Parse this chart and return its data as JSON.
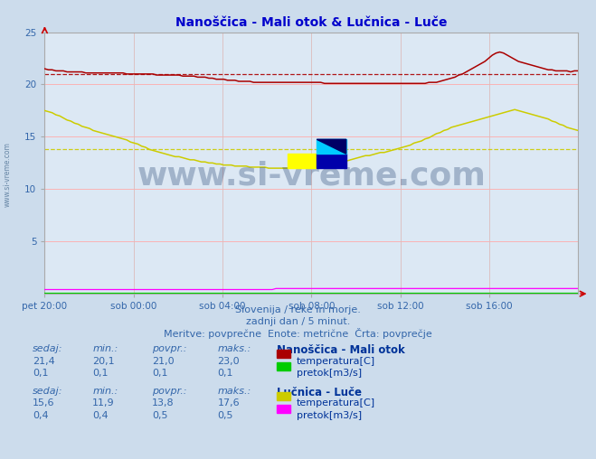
{
  "title": "Nanoščica - Mali otok & Lučnica - Luče",
  "title_color": "#0000cc",
  "bg_color": "#ccdcec",
  "plot_bg_color": "#dce8f4",
  "grid_color_h": "#ffaaaa",
  "grid_color_v": "#ddbbbb",
  "x_labels": [
    "pet 20:00",
    "sob 00:00",
    "sob 04:00",
    "sob 08:00",
    "sob 12:00",
    "sob 16:00"
  ],
  "x_ticks": [
    0,
    24,
    48,
    72,
    96,
    120
  ],
  "x_max": 144,
  "y_min": 0,
  "y_max": 25,
  "y_ticks": [
    5,
    10,
    15,
    20,
    25
  ],
  "arrow_color": "#cc0000",
  "watermark": "www.si-vreme.com",
  "watermark_color": "#1a3a6a",
  "subtitle1": "Slovenija / reke in morje.",
  "subtitle2": "zadnji dan / 5 minut.",
  "subtitle3": "Meritve: povprečne  Enote: metrične  Črta: povprečje",
  "subtitle_color": "#3366aa",
  "legend_header1": "Nanoščica - Mali otok",
  "legend_header2": "Lučnica - Luče",
  "legend_color": "#003399",
  "table_label_color": "#3366aa",
  "nano_temp_color": "#aa0000",
  "nano_flow_color": "#00cc00",
  "luce_temp_color": "#cccc00",
  "luce_flow_color": "#ff00ff",
  "nano_temp_avg": 21.0,
  "luce_temp_avg": 13.8,
  "s1_sedaj": "21,4",
  "s1_min": "20,1",
  "s1_povpr": "21,0",
  "s1_maks": "23,0",
  "s1_flow_sedaj": "0,1",
  "s1_flow_min": "0,1",
  "s1_flow_povpr": "0,1",
  "s1_flow_maks": "0,1",
  "s2_sedaj": "15,6",
  "s2_min": "11,9",
  "s2_povpr": "13,8",
  "s2_maks": "17,6",
  "s2_flow_sedaj": "0,4",
  "s2_flow_min": "0,4",
  "s2_flow_povpr": "0,5",
  "s2_flow_maks": "0,5",
  "nano_temp": [
    21.5,
    21.4,
    21.4,
    21.3,
    21.3,
    21.3,
    21.2,
    21.2,
    21.2,
    21.2,
    21.2,
    21.1,
    21.1,
    21.1,
    21.1,
    21.1,
    21.1,
    21.1,
    21.1,
    21.1,
    21.1,
    21.1,
    21.0,
    21.0,
    21.0,
    21.0,
    21.0,
    21.0,
    21.0,
    21.0,
    20.9,
    20.9,
    20.9,
    20.9,
    20.9,
    20.9,
    20.9,
    20.8,
    20.8,
    20.8,
    20.8,
    20.7,
    20.7,
    20.7,
    20.6,
    20.6,
    20.5,
    20.5,
    20.5,
    20.4,
    20.4,
    20.4,
    20.3,
    20.3,
    20.3,
    20.3,
    20.2,
    20.2,
    20.2,
    20.2,
    20.2,
    20.2,
    20.2,
    20.2,
    20.2,
    20.2,
    20.2,
    20.2,
    20.2,
    20.2,
    20.2,
    20.2,
    20.2,
    20.2,
    20.2,
    20.1,
    20.1,
    20.1,
    20.1,
    20.1,
    20.1,
    20.1,
    20.1,
    20.1,
    20.1,
    20.1,
    20.1,
    20.1,
    20.1,
    20.1,
    20.1,
    20.1,
    20.1,
    20.1,
    20.1,
    20.1,
    20.1,
    20.1,
    20.1,
    20.1,
    20.1,
    20.1,
    20.1,
    20.2,
    20.2,
    20.2,
    20.3,
    20.4,
    20.5,
    20.6,
    20.7,
    20.9,
    21.0,
    21.2,
    21.4,
    21.6,
    21.8,
    22.0,
    22.2,
    22.5,
    22.8,
    23.0,
    23.1,
    23.0,
    22.8,
    22.6,
    22.4,
    22.2,
    22.1,
    22.0,
    21.9,
    21.8,
    21.7,
    21.6,
    21.5,
    21.4,
    21.4,
    21.3,
    21.3,
    21.3,
    21.3,
    21.2,
    21.3,
    21.3
  ],
  "nano_flow": [
    0.1,
    0.1,
    0.1,
    0.1,
    0.1,
    0.1,
    0.1,
    0.1,
    0.1,
    0.1,
    0.1,
    0.1,
    0.1,
    0.1,
    0.1,
    0.1,
    0.1,
    0.1,
    0.1,
    0.1,
    0.1,
    0.1,
    0.1,
    0.1,
    0.1,
    0.1,
    0.1,
    0.1,
    0.1,
    0.1,
    0.1,
    0.1,
    0.1,
    0.1,
    0.1,
    0.1,
    0.1,
    0.1,
    0.1,
    0.1,
    0.1,
    0.1,
    0.1,
    0.1,
    0.1,
    0.1,
    0.1,
    0.1,
    0.1,
    0.1,
    0.1,
    0.1,
    0.1,
    0.1,
    0.1,
    0.1,
    0.1,
    0.1,
    0.1,
    0.1,
    0.1,
    0.1,
    0.1,
    0.1,
    0.1,
    0.1,
    0.1,
    0.1,
    0.1,
    0.1,
    0.1,
    0.1,
    0.1,
    0.1,
    0.1,
    0.1,
    0.1,
    0.1,
    0.1,
    0.1,
    0.1,
    0.1,
    0.1,
    0.1,
    0.1,
    0.1,
    0.1,
    0.1,
    0.1,
    0.1,
    0.1,
    0.1,
    0.1,
    0.1,
    0.1,
    0.1,
    0.1,
    0.1,
    0.1,
    0.1,
    0.1,
    0.1,
    0.1,
    0.1,
    0.1,
    0.1,
    0.1,
    0.1,
    0.1,
    0.1,
    0.1,
    0.1,
    0.1,
    0.1,
    0.1,
    0.1,
    0.1,
    0.1,
    0.1,
    0.1,
    0.1,
    0.1,
    0.1,
    0.1,
    0.1,
    0.1,
    0.1,
    0.1,
    0.1,
    0.1,
    0.1,
    0.1,
    0.1,
    0.1,
    0.1,
    0.1,
    0.1,
    0.1,
    0.1,
    0.1,
    0.1,
    0.1,
    0.1,
    0.1
  ],
  "luce_temp": [
    17.5,
    17.4,
    17.3,
    17.1,
    17.0,
    16.8,
    16.6,
    16.5,
    16.3,
    16.2,
    16.0,
    15.9,
    15.8,
    15.6,
    15.5,
    15.4,
    15.3,
    15.2,
    15.1,
    15.0,
    14.9,
    14.8,
    14.7,
    14.5,
    14.4,
    14.3,
    14.1,
    14.0,
    13.8,
    13.7,
    13.6,
    13.5,
    13.4,
    13.3,
    13.2,
    13.1,
    13.1,
    13.0,
    12.9,
    12.8,
    12.8,
    12.7,
    12.6,
    12.6,
    12.5,
    12.5,
    12.4,
    12.4,
    12.3,
    12.3,
    12.3,
    12.2,
    12.2,
    12.2,
    12.2,
    12.1,
    12.1,
    12.1,
    12.1,
    12.1,
    12.0,
    12.0,
    12.0,
    12.0,
    12.0,
    12.0,
    12.0,
    12.0,
    12.0,
    12.0,
    12.0,
    12.0,
    12.1,
    12.1,
    12.2,
    12.2,
    12.3,
    12.4,
    12.5,
    12.6,
    12.6,
    12.7,
    12.8,
    12.9,
    13.0,
    13.1,
    13.2,
    13.2,
    13.3,
    13.4,
    13.5,
    13.5,
    13.6,
    13.7,
    13.8,
    13.9,
    14.0,
    14.1,
    14.2,
    14.4,
    14.5,
    14.6,
    14.8,
    14.9,
    15.1,
    15.3,
    15.4,
    15.6,
    15.7,
    15.9,
    16.0,
    16.1,
    16.2,
    16.3,
    16.4,
    16.5,
    16.6,
    16.7,
    16.8,
    16.9,
    17.0,
    17.1,
    17.2,
    17.3,
    17.4,
    17.5,
    17.6,
    17.5,
    17.4,
    17.3,
    17.2,
    17.1,
    17.0,
    16.9,
    16.8,
    16.7,
    16.5,
    16.4,
    16.2,
    16.1,
    15.9,
    15.8,
    15.7,
    15.6
  ],
  "luce_flow": [
    0.4,
    0.4,
    0.4,
    0.4,
    0.4,
    0.4,
    0.4,
    0.4,
    0.4,
    0.4,
    0.4,
    0.4,
    0.4,
    0.4,
    0.4,
    0.4,
    0.4,
    0.4,
    0.4,
    0.4,
    0.4,
    0.4,
    0.4,
    0.4,
    0.4,
    0.4,
    0.4,
    0.4,
    0.4,
    0.4,
    0.4,
    0.4,
    0.4,
    0.4,
    0.4,
    0.4,
    0.4,
    0.4,
    0.4,
    0.4,
    0.4,
    0.4,
    0.4,
    0.4,
    0.4,
    0.4,
    0.4,
    0.4,
    0.4,
    0.4,
    0.4,
    0.4,
    0.4,
    0.4,
    0.4,
    0.4,
    0.4,
    0.4,
    0.4,
    0.4,
    0.4,
    0.4,
    0.5,
    0.5,
    0.5,
    0.5,
    0.5,
    0.5,
    0.5,
    0.5,
    0.5,
    0.5,
    0.5,
    0.5,
    0.5,
    0.5,
    0.5,
    0.5,
    0.5,
    0.5,
    0.5,
    0.5,
    0.5,
    0.5,
    0.5,
    0.5,
    0.5,
    0.5,
    0.5,
    0.5,
    0.5,
    0.5,
    0.5,
    0.5,
    0.5,
    0.5,
    0.5,
    0.5,
    0.5,
    0.5,
    0.5,
    0.5,
    0.5,
    0.5,
    0.5,
    0.5,
    0.5,
    0.5,
    0.5,
    0.5,
    0.5,
    0.5,
    0.5,
    0.5,
    0.5,
    0.5,
    0.5,
    0.5,
    0.5,
    0.5,
    0.5,
    0.5,
    0.5,
    0.5,
    0.5,
    0.5,
    0.5,
    0.5,
    0.5,
    0.5,
    0.5,
    0.5,
    0.5,
    0.5,
    0.5,
    0.5,
    0.5,
    0.5,
    0.5,
    0.5,
    0.5,
    0.5,
    0.5,
    0.5
  ]
}
